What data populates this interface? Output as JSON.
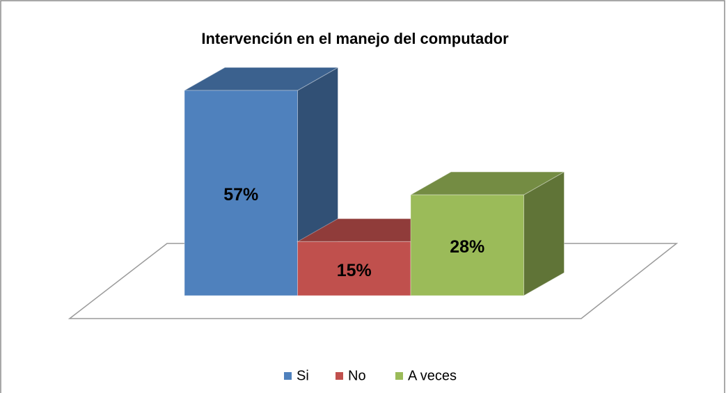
{
  "chart_data": {
    "type": "bar3d",
    "title": "Intervención en  el manejo del computador",
    "categories": [
      null
    ],
    "series": [
      {
        "name": "Si",
        "color": "#4f81bd",
        "values": [
          57
        ],
        "value_labels": [
          "57%"
        ]
      },
      {
        "name": "No",
        "color": "#c0504d",
        "values": [
          15
        ],
        "value_labels": [
          "15%"
        ]
      },
      {
        "name": "A veces",
        "color": "#9bbb59",
        "values": [
          28
        ],
        "value_labels": [
          "28%"
        ]
      }
    ],
    "legend": "bottom"
  }
}
